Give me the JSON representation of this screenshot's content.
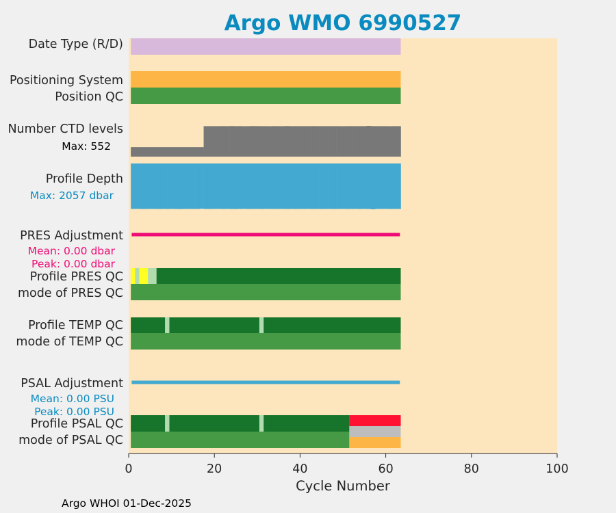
{
  "chart_data": {
    "type": "bar",
    "title": "Argo WMO 6990527",
    "xlabel": "Cycle Number",
    "xlim": [
      0,
      100
    ],
    "xticks": [
      0,
      20,
      40,
      60,
      80,
      100
    ],
    "xtick_labels": [
      "0",
      "20",
      "40",
      "60",
      "80",
      "100"
    ],
    "footer": "Argo WHOI 01-Dec-2025",
    "colors": {
      "title": "#0a8bbf",
      "plot_bg": "#fde6bd",
      "figure_bg": "#f0f0f0",
      "date_type": "#d8b9dc",
      "positioning": "#fdb645",
      "qc_good": "#479a45",
      "qc_profile_good": "#16742b",
      "qc_light": "#b0dcb0",
      "qc_yellow": "#ffff22",
      "qc_red": "#ff1133",
      "qc_gray": "#bdbdbd",
      "qc_orange": "#fdb645",
      "ctd": "#787878",
      "depth": "#43a9d0",
      "pres_adj": "#ef0a76",
      "psal_adj": "#43a9d0",
      "annot_pres": "#ef0a76",
      "annot_psal": "#0a8bbf"
    },
    "rows": {
      "date_type": {
        "label": "Date Type (R/D)",
        "segments": [
          {
            "start": 0.5,
            "end": 63.5,
            "color": "date_type"
          }
        ]
      },
      "positioning": {
        "label": "Positioning System",
        "segments": [
          {
            "start": 0.5,
            "end": 63.5,
            "color": "positioning"
          }
        ]
      },
      "position_qc": {
        "label": "Position QC",
        "segments": [
          {
            "start": 0.5,
            "end": 63.5,
            "color": "qc_good"
          }
        ]
      },
      "ctd_levels": {
        "label": "Number CTD levels",
        "max_label": "Max: 552",
        "max": 552,
        "cycles_start": 1,
        "cycles_end": 63,
        "values": [
          170,
          170,
          170,
          170,
          170,
          170,
          170,
          170,
          170,
          170,
          170,
          170,
          170,
          170,
          170,
          170,
          170,
          547,
          547,
          547,
          547,
          548,
          547,
          549,
          547,
          548,
          546,
          547,
          549,
          548,
          547,
          547,
          546,
          548,
          547,
          547,
          549,
          547,
          547,
          547,
          547,
          547,
          548,
          547,
          547,
          547,
          547,
          547,
          547,
          546,
          547,
          547,
          547,
          547,
          547,
          552,
          547,
          547,
          547,
          547,
          546,
          547,
          547
        ]
      },
      "profile_depth": {
        "label": "Profile Depth",
        "max_label": "Max: 2057 dbar",
        "max": 2057,
        "cycles_start": 1,
        "cycles_end": 63,
        "values": [
          2040,
          2038,
          2043,
          2042,
          2039,
          2041,
          2043,
          2040,
          2042,
          2039,
          2043,
          2045,
          2041,
          2039,
          2042,
          2043,
          2030,
          2041,
          2042,
          2039,
          2038,
          2042,
          2040,
          2043,
          2045,
          2040,
          2038,
          2042,
          2041,
          2039,
          2043,
          2038,
          2040,
          2042,
          2041,
          2039,
          2043,
          2040,
          2042,
          2041,
          2039,
          2038,
          2042,
          2040,
          2043,
          2041,
          2039,
          2042,
          2040,
          2038,
          2042,
          2041,
          2040,
          2043,
          2039,
          2042,
          2057,
          2040,
          2041,
          2038,
          2042,
          2040,
          2041
        ]
      },
      "pres_adjustment": {
        "label": "PRES Adjustment",
        "mean_label": "Mean: 0.00 dbar",
        "peak_label": "Peak: 0.00 dbar",
        "mean": 0.0,
        "peak": 0.0,
        "segments": [
          {
            "start": 1,
            "end": 63,
            "color": "pres_adj"
          }
        ]
      },
      "profile_pres_qc": {
        "label": "Profile PRES QC",
        "segments": [
          {
            "start": 0.5,
            "end": 1.5,
            "color": "qc_yellow"
          },
          {
            "start": 1.5,
            "end": 2.5,
            "color": "qc_light"
          },
          {
            "start": 2.5,
            "end": 4.5,
            "color": "qc_yellow"
          },
          {
            "start": 4.5,
            "end": 6.5,
            "color": "qc_light"
          },
          {
            "start": 6.5,
            "end": 63.5,
            "color": "qc_profile_good"
          }
        ]
      },
      "mode_pres_qc": {
        "label": "mode of PRES QC",
        "segments": [
          {
            "start": 0.5,
            "end": 63.5,
            "color": "qc_good"
          }
        ]
      },
      "profile_temp_qc": {
        "label": "Profile TEMP QC",
        "segments": [
          {
            "start": 0.5,
            "end": 8.5,
            "color": "qc_profile_good"
          },
          {
            "start": 8.5,
            "end": 9.5,
            "color": "qc_light"
          },
          {
            "start": 9.5,
            "end": 30.5,
            "color": "qc_profile_good"
          },
          {
            "start": 30.5,
            "end": 31.5,
            "color": "qc_light"
          },
          {
            "start": 31.5,
            "end": 63.5,
            "color": "qc_profile_good"
          }
        ]
      },
      "mode_temp_qc": {
        "label": "mode of TEMP QC",
        "segments": [
          {
            "start": 0.5,
            "end": 63.5,
            "color": "qc_good"
          }
        ]
      },
      "psal_adjustment": {
        "label": "PSAL Adjustment",
        "mean_label": "Mean: 0.00 PSU",
        "peak_label": "Peak: 0.00 PSU",
        "mean": 0.0,
        "peak": 0.0,
        "segments": [
          {
            "start": 1,
            "end": 63,
            "color": "psal_adj"
          }
        ]
      },
      "profile_psal_qc": {
        "label": "Profile PSAL QC",
        "segments": [
          {
            "start": 0.5,
            "end": 8.5,
            "color": "qc_profile_good"
          },
          {
            "start": 8.5,
            "end": 9.5,
            "color": "qc_light"
          },
          {
            "start": 9.5,
            "end": 30.5,
            "color": "qc_profile_good"
          },
          {
            "start": 30.5,
            "end": 31.5,
            "color": "qc_light"
          },
          {
            "start": 31.5,
            "end": 51.5,
            "color": "qc_profile_good"
          },
          {
            "start": 51.5,
            "end": 63.5,
            "color": "qc_red"
          }
        ]
      },
      "mode_psal_qc": {
        "label": "mode of PSAL QC",
        "segments": [
          {
            "start": 0.5,
            "end": 51.5,
            "color": "qc_good"
          },
          {
            "start": 51.5,
            "end": 63.5,
            "color": "qc_gray",
            "part": "top"
          },
          {
            "start": 51.5,
            "end": 63.5,
            "color": "qc_orange",
            "part": "bottom"
          }
        ]
      }
    }
  }
}
